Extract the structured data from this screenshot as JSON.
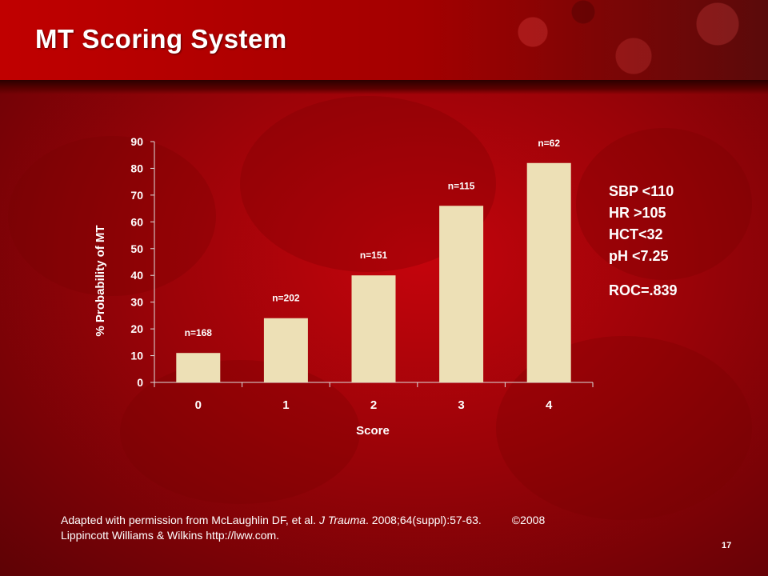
{
  "slide": {
    "title": "MT Scoring System",
    "page_number": "17"
  },
  "chart_data": {
    "type": "bar",
    "title": "",
    "xlabel": "Score",
    "ylabel": "% Probability of  MT",
    "categories": [
      "0",
      "1",
      "2",
      "3",
      "4"
    ],
    "values": [
      11,
      24,
      40,
      66,
      82
    ],
    "bar_labels": [
      "n=168",
      "n=202",
      "n=151",
      "n=115",
      "n=62"
    ],
    "ylim": [
      0,
      90
    ],
    "yticks": [
      0,
      10,
      20,
      30,
      40,
      50,
      60,
      70,
      80,
      90
    ],
    "grid": false,
    "bar_color": "#ede0b6",
    "axis_color": "#dddddd"
  },
  "criteria": {
    "items": [
      "SBP <110",
      "HR >105",
      "HCT<32",
      "pH <7.25"
    ],
    "roc": "ROC=.839"
  },
  "citation": {
    "prefix": "Adapted with permission from McLaughlin DF, et al. ",
    "journal": "J Trauma",
    "detail": ". 2008;64(suppl):57-63.",
    "copyright": "©2008",
    "line2": "Lippincott Williams & Wilkins http://lww.com."
  }
}
